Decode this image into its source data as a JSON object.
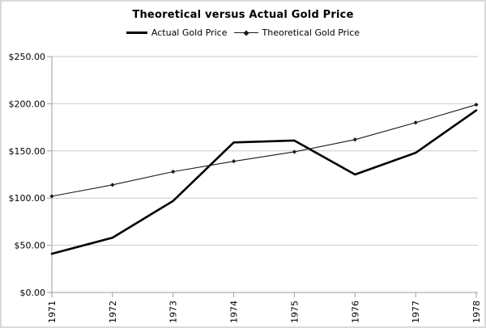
{
  "chart_data": {
    "type": "line",
    "title": "Theoretical versus Actual Gold Price",
    "categories": [
      "1971",
      "1972",
      "1973",
      "1974",
      "1975",
      "1976",
      "1977",
      "1978"
    ],
    "series": [
      {
        "name": "Actual Gold Price",
        "values": [
          41,
          58,
          97,
          159,
          161,
          125,
          148,
          193
        ],
        "color": "#000000",
        "style": "thick",
        "marker": "none"
      },
      {
        "name": "Theoretical Gold Price",
        "values": [
          102,
          114,
          128,
          139,
          149,
          162,
          180,
          199
        ],
        "color": "#1a1a1a",
        "style": "thin",
        "marker": "diamond"
      }
    ],
    "xlabel": "",
    "ylabel": "",
    "ylim": [
      0,
      250
    ],
    "ytick_values": [
      0,
      50,
      100,
      150,
      200,
      250
    ],
    "ytick_labels": [
      "$0.00",
      "$50.00",
      "$100.00",
      "$150.00",
      "$200.00",
      "$250.00"
    ],
    "grid": "horizontal",
    "grid_color": "#c9c9c9",
    "axis_color": "#9e9e9e",
    "legend_position": "top",
    "xtick_rotation": -90
  }
}
